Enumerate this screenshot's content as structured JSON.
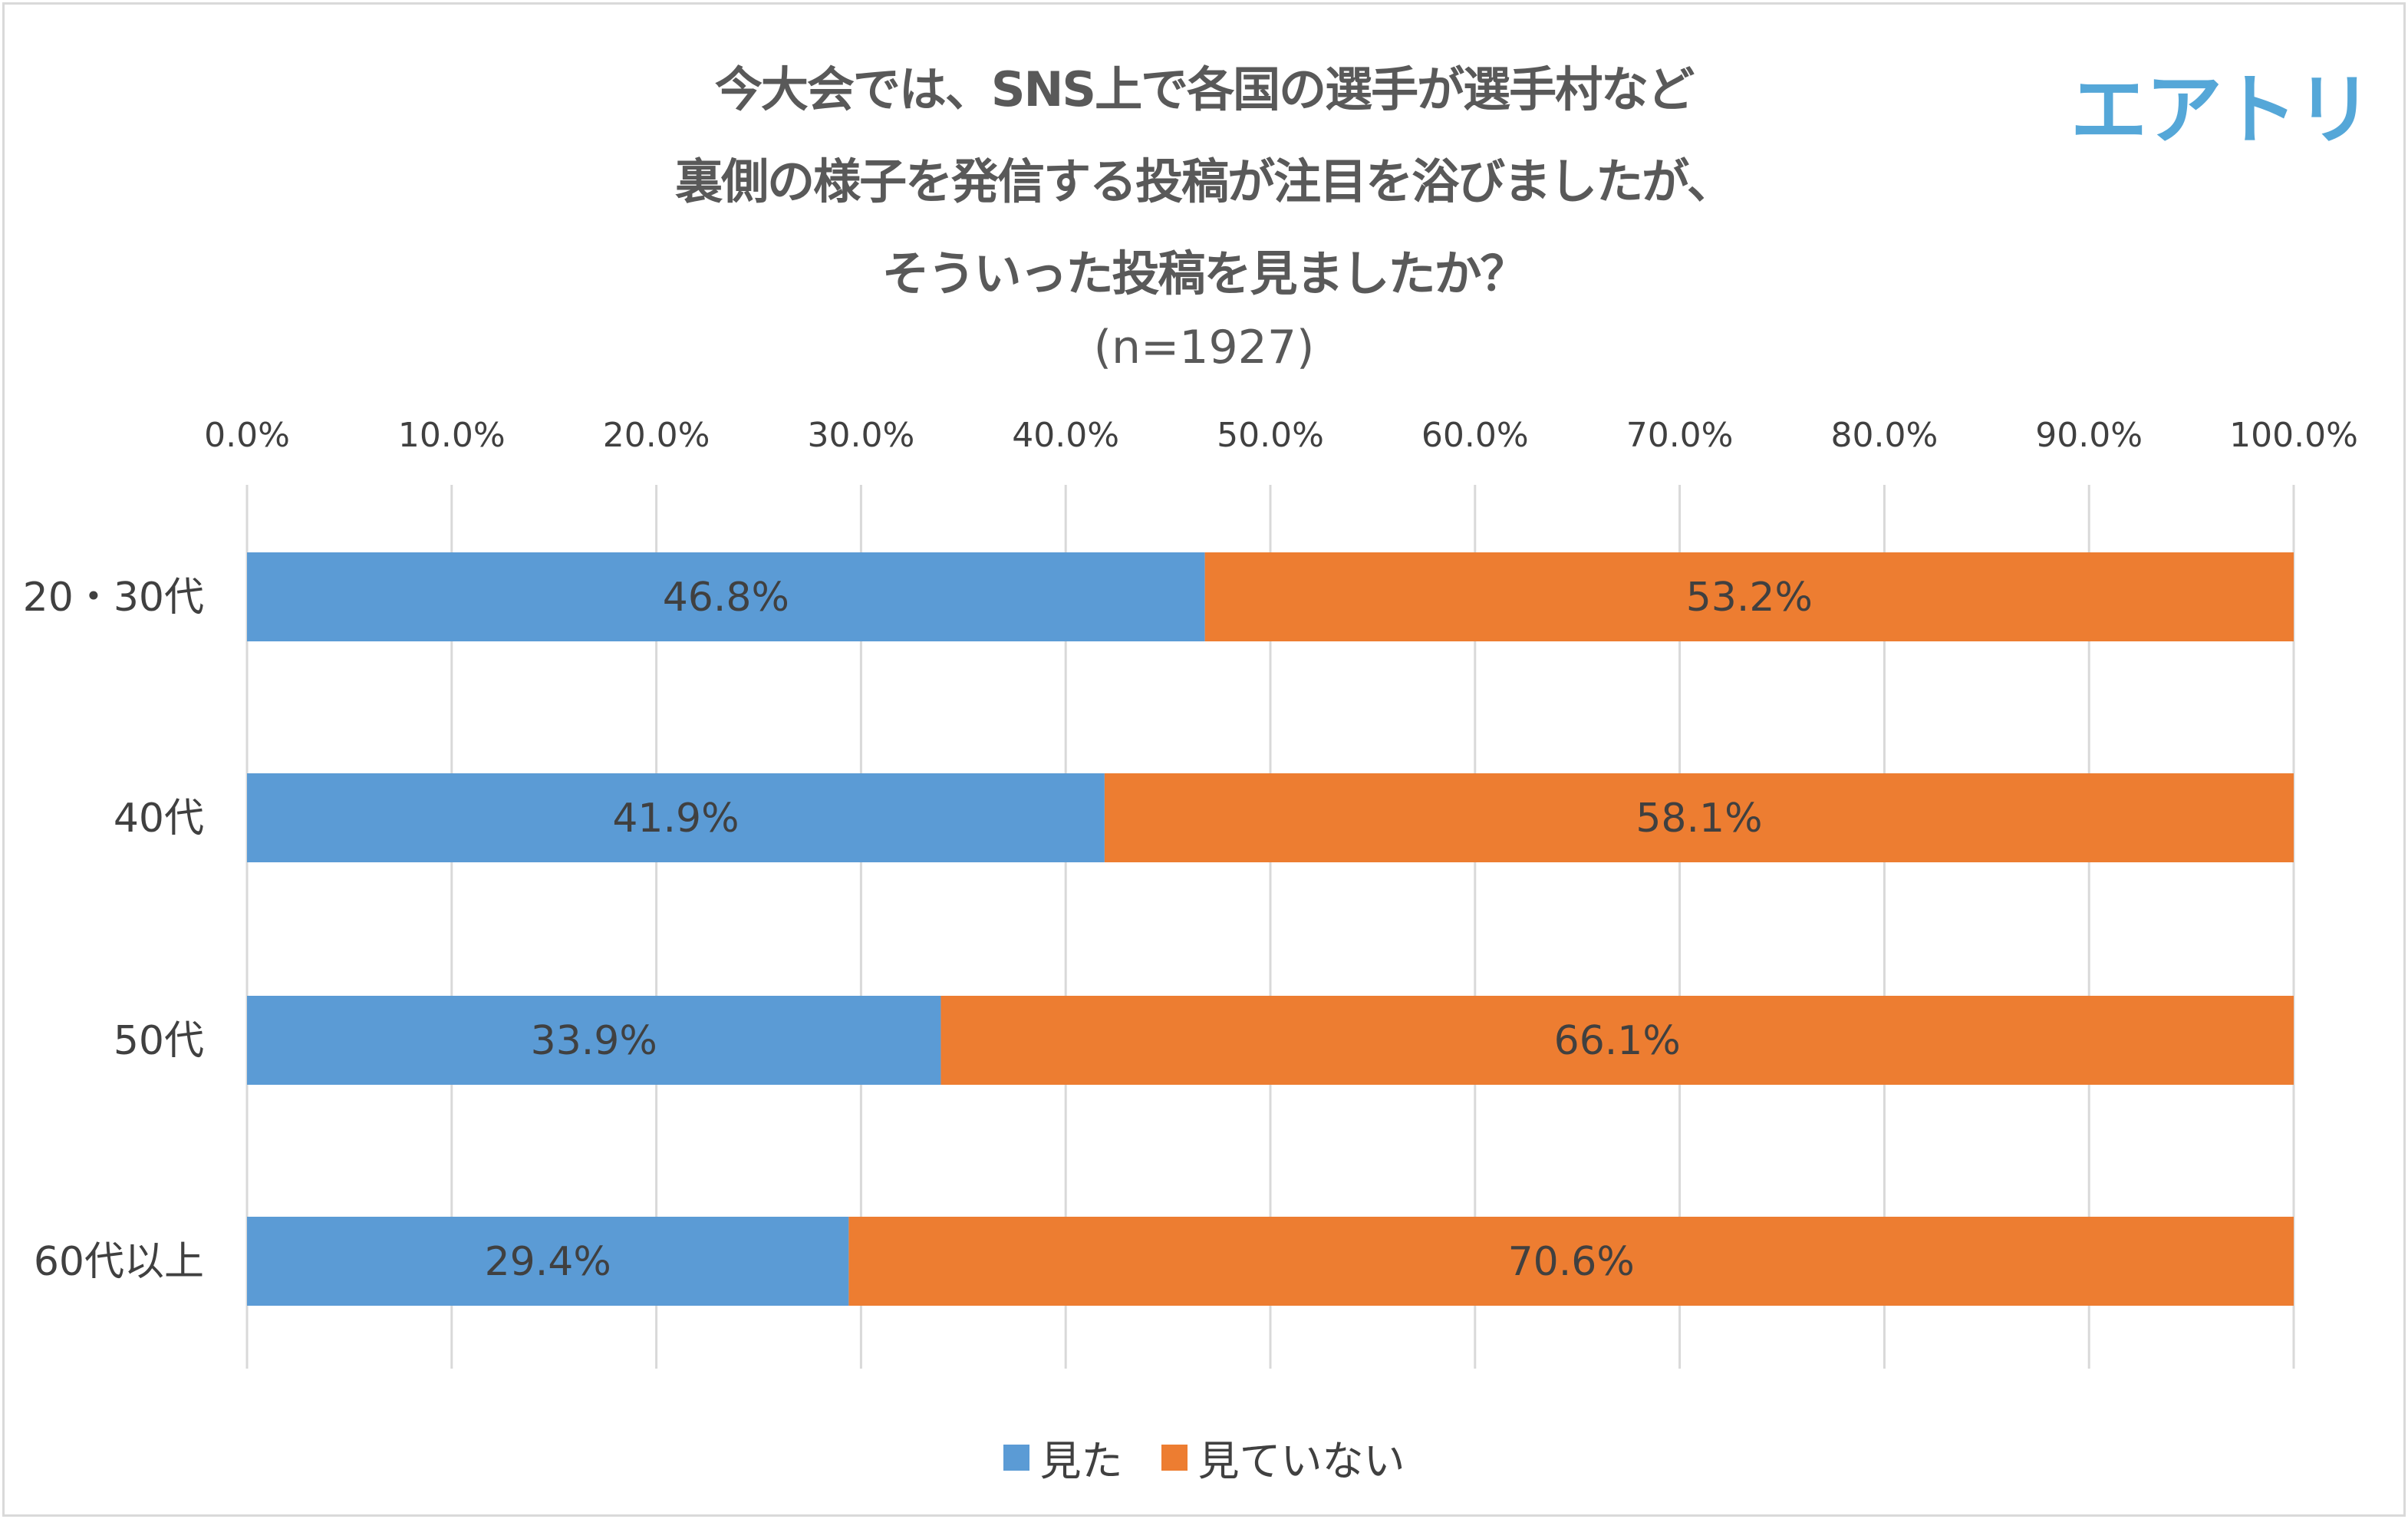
{
  "logo_text": "エアトリ",
  "chart_data": {
    "type": "bar",
    "stacked": true,
    "orientation": "horizontal",
    "title_lines": [
      "今大会では、SNS上で各国の選手が選手村など",
      "裏側の様子を発信する投稿が注目を浴びましたが、",
      "そういった投稿を見ましたか？"
    ],
    "subtitle": "(n=1927)",
    "categories": [
      "20・30代",
      "40代",
      "50代",
      "60代以上"
    ],
    "series": [
      {
        "name": "見た",
        "color": "#5B9BD5",
        "values": [
          46.8,
          41.9,
          33.9,
          29.4
        ],
        "labels": [
          "46.8%",
          "41.9%",
          "33.9%",
          "29.4%"
        ]
      },
      {
        "name": "見ていない",
        "color": "#ED7D31",
        "values": [
          53.2,
          58.1,
          66.1,
          70.6
        ],
        "labels": [
          "53.2%",
          "58.1%",
          "66.1%",
          "70.6%"
        ]
      }
    ],
    "xlim": [
      0,
      100
    ],
    "x_ticks": [
      "0.0%",
      "10.0%",
      "20.0%",
      "30.0%",
      "40.0%",
      "50.0%",
      "60.0%",
      "70.0%",
      "80.0%",
      "90.0%",
      "100.0%"
    ],
    "x_axis_position": "top",
    "grid": true,
    "legend_position": "bottom"
  }
}
